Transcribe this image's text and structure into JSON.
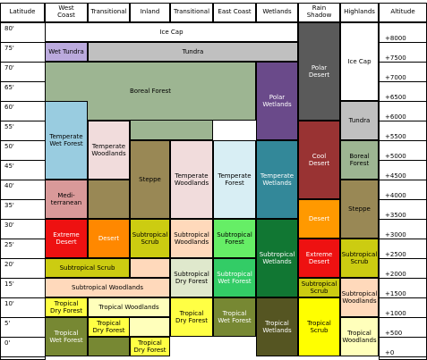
{
  "headers": [
    {
      "text": "Latitude"
    },
    {
      "text": "West\nCoast"
    },
    {
      "text": "Transitional"
    },
    {
      "text": "Inland"
    },
    {
      "text": "Transitional"
    },
    {
      "text": "East Coast"
    },
    {
      "text": "Wetlands"
    },
    {
      "text": "Rain\nShadow"
    },
    {
      "text": "Highlands"
    },
    {
      "text": "Altitude"
    }
  ],
  "latitudes": [
    "80'",
    "75'",
    "70'",
    "65'",
    "60'",
    "55'",
    "50'",
    "45'",
    "40'",
    "35'",
    "30'",
    "25'",
    "20'",
    "15'",
    "10'",
    "5'",
    "0'"
  ],
  "altitudes": [
    "+8000",
    "+7500",
    "+7000",
    "+6500",
    "+6000",
    "+5500",
    "+5000",
    "+4500",
    "+4000",
    "+3500",
    "+3000",
    "+2500",
    "+2000",
    "+1500",
    "+1000",
    "+500",
    "+0"
  ],
  "regions": [
    {
      "name": "ice-cap-main",
      "label": "Ice Cap",
      "color": "#ffffff",
      "text_color": "#000000"
    },
    {
      "name": "wet-tundra",
      "label": "Wet Tundra",
      "color": "#bbaadd",
      "text_color": "#000000"
    },
    {
      "name": "tundra",
      "label": "Tundra",
      "color": "#c0c0c0",
      "text_color": "#000000"
    },
    {
      "name": "boreal-forest",
      "label": "Boreal Forest",
      "color": "#9db592",
      "text_color": "#000000"
    },
    {
      "name": "polar-wetlands",
      "label": "Polar\nWetlands",
      "color": "#6a4a8a",
      "text_color": "#ffffff"
    },
    {
      "name": "polar-desert",
      "label": "Polar\nDesert",
      "color": "#5a5a5a",
      "text_color": "#ffffff"
    },
    {
      "name": "ice-cap-highlands",
      "label": "Ice Cap",
      "color": "#ffffff",
      "text_color": "#000000"
    },
    {
      "name": "tundra-highlands",
      "label": "Tundra",
      "color": "#c0c0c0",
      "text_color": "#000000"
    },
    {
      "name": "temperate-wet-forest",
      "label": "Temperate\nWet Forest",
      "color": "#99cce0",
      "text_color": "#000000"
    },
    {
      "name": "temperate-woodlands-west",
      "label": "Temperate\nWoodlands",
      "color": "#f1dcdc",
      "text_color": "#000000"
    },
    {
      "name": "steppe-inland",
      "label": "Steppe",
      "color": "#998855",
      "text_color": "#000000"
    },
    {
      "name": "temperate-woodlands-east",
      "label": "Temperate\nWoodlands",
      "color": "#f1dcdc",
      "text_color": "#000000"
    },
    {
      "name": "temperate-forest",
      "label": "Temperate\nForest",
      "color": "#d8eef4",
      "text_color": "#000000"
    },
    {
      "name": "temperate-wetlands",
      "label": "Temperate\nWetlands",
      "color": "#338899",
      "text_color": "#ffffff"
    },
    {
      "name": "cool-desert",
      "label": "Cool\nDesert",
      "color": "#993333",
      "text_color": "#ffffff"
    },
    {
      "name": "boreal-forest-highlands",
      "label": "Boreal\nForest",
      "color": "#9db592",
      "text_color": "#000000"
    },
    {
      "name": "mediterranean",
      "label": "Medi-\nterranean",
      "color": "#d99999",
      "text_color": "#000000"
    },
    {
      "name": "desert-rain-shadow",
      "label": "Desert",
      "color": "#ff9900",
      "text_color": "#ffffff"
    },
    {
      "name": "steppe-highlands",
      "label": "Steppe",
      "color": "#998855",
      "text_color": "#000000"
    },
    {
      "name": "extreme-desert-west",
      "label": "Extreme\nDesert",
      "color": "#ee1111",
      "text_color": "#ffffff"
    },
    {
      "name": "desert-transitional",
      "label": "Desert",
      "color": "#ff8800",
      "text_color": "#ffffff"
    },
    {
      "name": "subtropical-scrub-inland",
      "label": "Subtropical\nScrub",
      "color": "#cccc11",
      "text_color": "#000000"
    },
    {
      "name": "subtropical-woodlands-top",
      "label": "Subtropical\nWoodlands",
      "color": "#ffd9bb",
      "text_color": "#000000"
    },
    {
      "name": "subtropical-forest",
      "label": "Subtropical\nForest",
      "color": "#66ee66",
      "text_color": "#000000"
    },
    {
      "name": "subtropical-wetlands",
      "label": "Subtropical\nWetlands",
      "color": "#117733",
      "text_color": "#ffffff"
    },
    {
      "name": "extreme-desert-rain-shadow",
      "label": "Extreme\nDesert",
      "color": "#ee1111",
      "text_color": "#ffffff"
    },
    {
      "name": "subtropical-scrub-highlands",
      "label": "Subtropical\nScrub",
      "color": "#cccc11",
      "text_color": "#000000"
    },
    {
      "name": "subtropical-scrub-west",
      "label": "Subtropical Scrub",
      "color": "#cccc11",
      "text_color": "#000000"
    },
    {
      "name": "subtropical-woodlands-main",
      "label": "Subtropical Woodlands",
      "color": "#ffd9bb",
      "text_color": "#000000"
    },
    {
      "name": "subtropical-dry-forest",
      "label": "Subtropical\nDry Forest",
      "color": "#dfe8cc",
      "text_color": "#000000"
    },
    {
      "name": "subtropical-wet-forest",
      "label": "Subtropical\nWet Forest",
      "color": "#33cc66",
      "text_color": "#ffffff"
    },
    {
      "name": "subtropical-scrub-rain-shadow",
      "label": "Subtropical\nScrub",
      "color": "#cccc11",
      "text_color": "#000000"
    },
    {
      "name": "subtropical-woodlands-highlands",
      "label": "Subtropical\nWoodlands",
      "color": "#ffd9bb",
      "text_color": "#000000"
    },
    {
      "name": "tropical-dry-forest-west",
      "label": "Tropical\nDry Forest",
      "color": "#ffff44",
      "text_color": "#000000"
    },
    {
      "name": "tropical-woodlands-top",
      "label": "Tropical Woodlands",
      "color": "#ffffbb",
      "text_color": "#000000"
    },
    {
      "name": "tropical-dry-forest-east",
      "label": "Tropical\nDry Forest",
      "color": "#ffff44",
      "text_color": "#000000"
    },
    {
      "name": "tropical-wet-forest-west",
      "label": "Tropical\nWet Forest",
      "color": "#778833",
      "text_color": "#ffffff"
    },
    {
      "name": "tropical-dry-forest-small",
      "label": "Tropical\nDry Forest",
      "color": "#ffff44",
      "text_color": "#000000"
    },
    {
      "name": "tropical-dry-forest-bottom",
      "label": "Tropical\nDry Forest",
      "color": "#ffff44",
      "text_color": "#000000"
    },
    {
      "name": "tropical-wet-forest-east",
      "label": "Tropical\nWet Forest",
      "color": "#778833",
      "text_color": "#ffffff"
    },
    {
      "name": "tropical-wetlands",
      "label": "Tropical\nWetlands",
      "color": "#555522",
      "text_color": "#ffffff"
    },
    {
      "name": "tropical-scrub",
      "label": "Tropical\nScrub",
      "color": "#ffff00",
      "text_color": "#000000"
    },
    {
      "name": "tropical-woodlands-highlands",
      "label": "Tropical\nWoodlands",
      "color": "#ffffbb",
      "text_color": "#000000"
    },
    {
      "name": "empty-cell",
      "label": "",
      "color": "#778833",
      "text_color": "#000000"
    }
  ]
}
